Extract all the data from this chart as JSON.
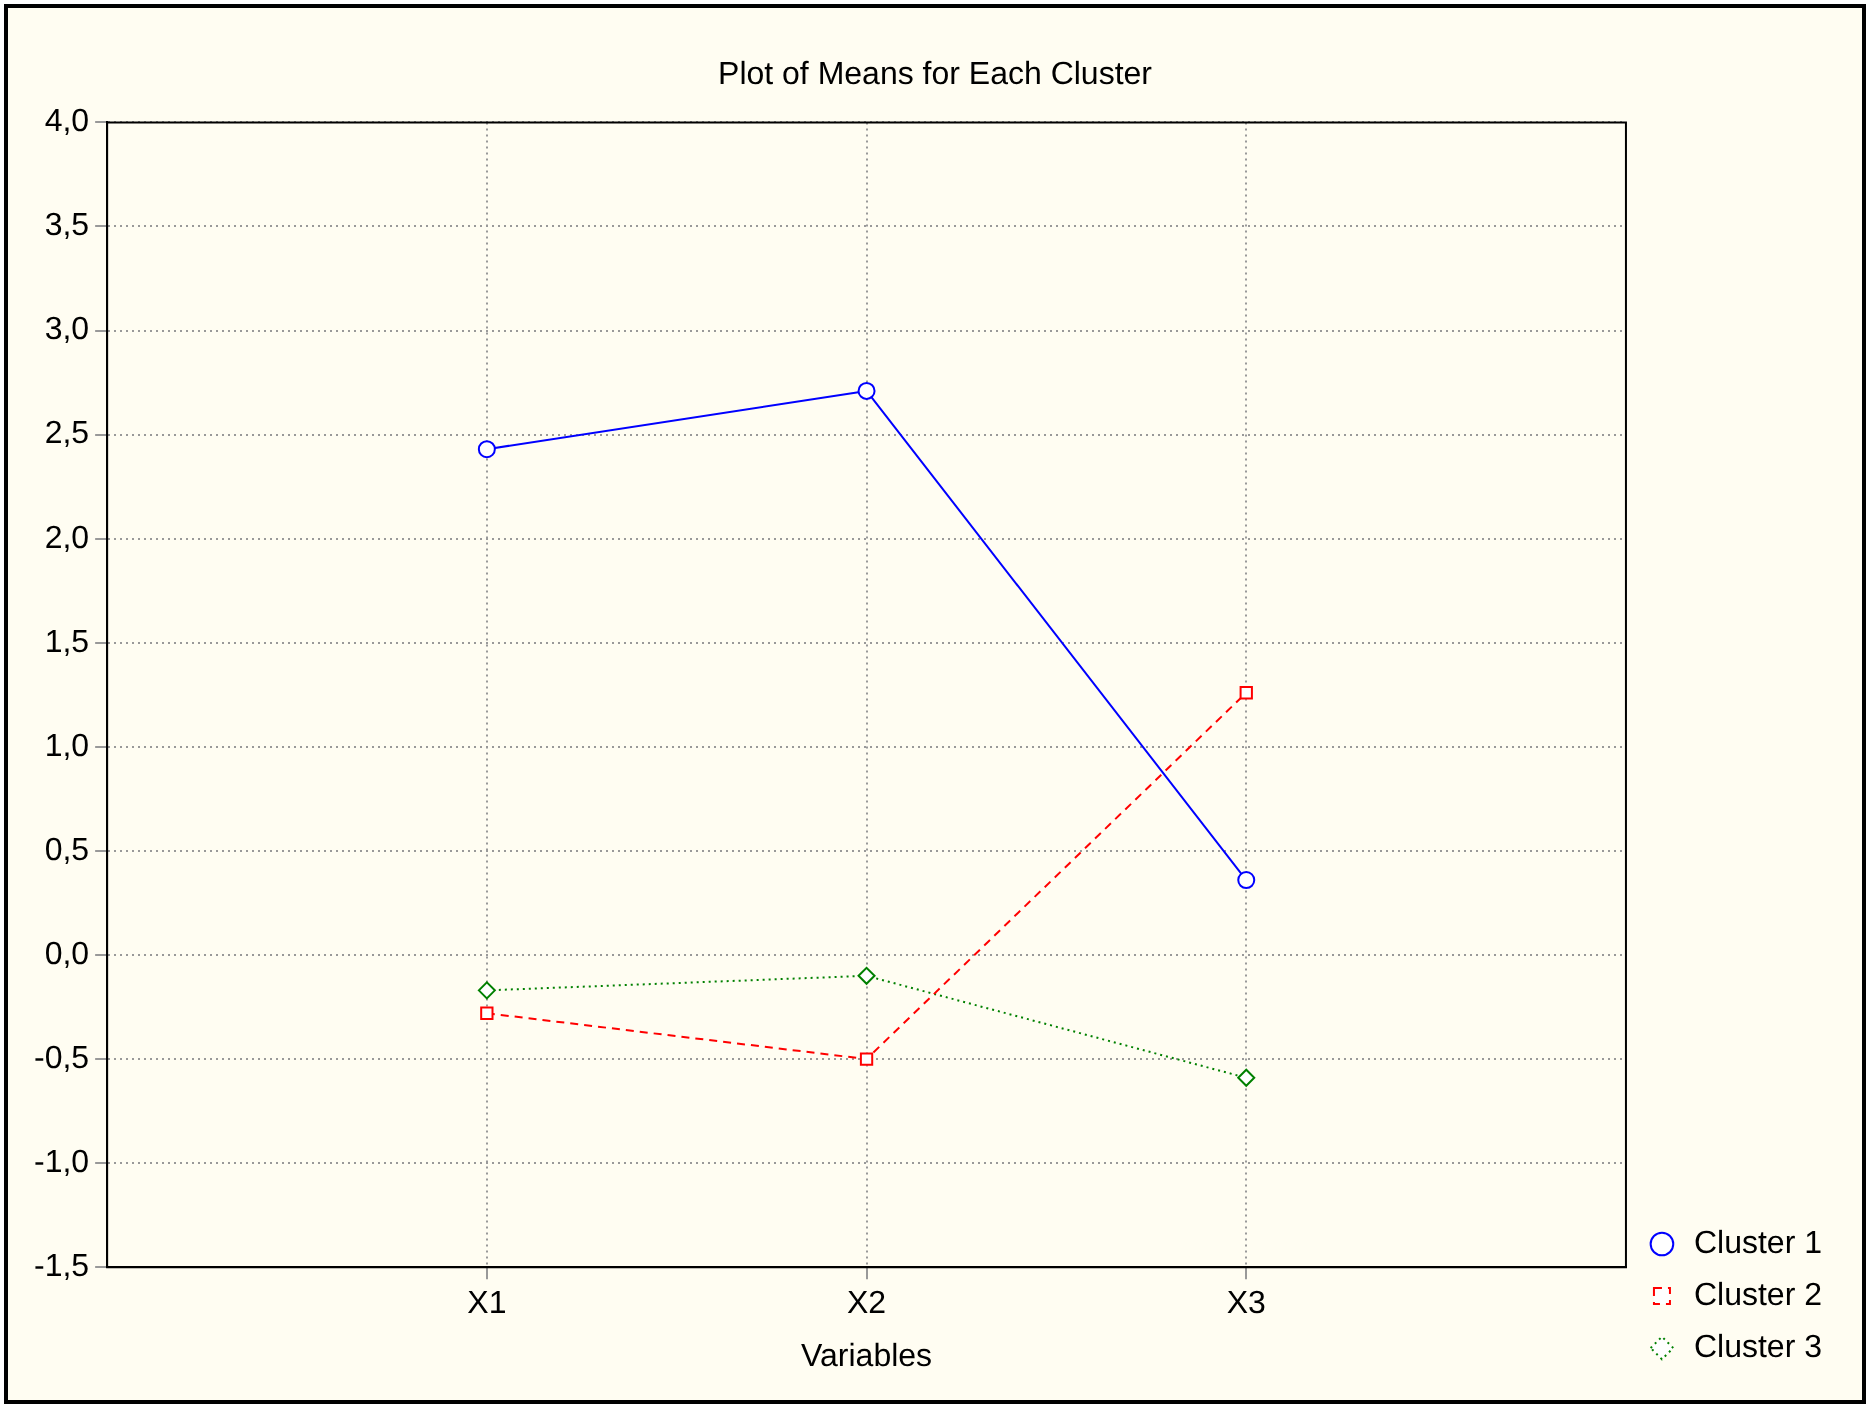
{
  "chart_data": {
    "type": "line",
    "title": "Plot of Means for Each Cluster",
    "xlabel": "Variables",
    "categories": [
      "X1",
      "X2",
      "X3"
    ],
    "series": [
      {
        "name": "Cluster 1",
        "color": "#0000ff",
        "values": [
          2.43,
          2.71,
          0.36
        ],
        "marker": "circle",
        "line_style": "solid"
      },
      {
        "name": "Cluster 2",
        "color": "#ff0000",
        "values": [
          -0.28,
          -0.5,
          1.26
        ],
        "marker": "square",
        "line_style": "dashed"
      },
      {
        "name": "Cluster 3",
        "color": "#008000",
        "values": [
          -0.17,
          -0.1,
          -0.59
        ],
        "marker": "diamond",
        "line_style": "dotted"
      }
    ],
    "ylim": [
      -1.5,
      4
    ],
    "yticks": [
      {
        "value": -1.5,
        "label": "-1,5"
      },
      {
        "value": -1,
        "label": "-1,0"
      },
      {
        "value": -0.5,
        "label": "-0,5"
      },
      {
        "value": 0,
        "label": "0,0"
      },
      {
        "value": 0.5,
        "label": "0,5"
      },
      {
        "value": 1,
        "label": "1,0"
      },
      {
        "value": 1.5,
        "label": "1,5"
      },
      {
        "value": 2,
        "label": "2,0"
      },
      {
        "value": 2.5,
        "label": "2,5"
      },
      {
        "value": 3,
        "label": "3,0"
      },
      {
        "value": 3.5,
        "label": "3,5"
      },
      {
        "value": 4,
        "label": "4,0"
      }
    ],
    "grid": true,
    "legend": "bottom right"
  }
}
